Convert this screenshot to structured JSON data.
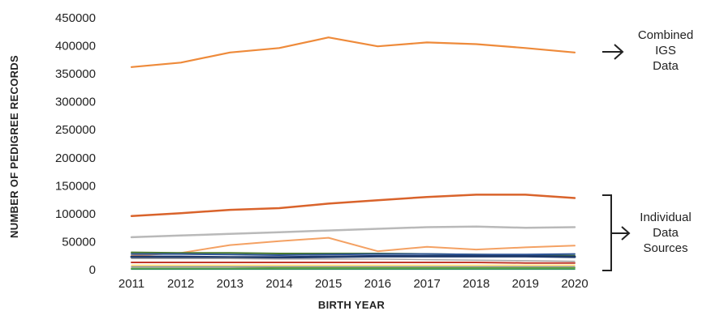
{
  "chart_data": {
    "type": "line",
    "title": "",
    "xlabel": "BIRTH YEAR",
    "ylabel": "NUMBER OF PEDIGREE RECORDS",
    "x": [
      2011,
      2012,
      2013,
      2014,
      2015,
      2016,
      2017,
      2018,
      2019,
      2020
    ],
    "yticks": [
      "0",
      "50000",
      "100000",
      "150000",
      "200000",
      "250000",
      "300000",
      "350000",
      "400000",
      "450000"
    ],
    "ylim": [
      0,
      450000
    ],
    "grid": false,
    "legend": "none",
    "series": [
      {
        "color": "#ee8a3a",
        "width": 2.2,
        "values": [
          362000,
          370000,
          388000,
          396000,
          415000,
          399000,
          406000,
          403000,
          396000,
          388000
        ]
      },
      {
        "color": "#d9632b",
        "width": 2.5,
        "values": [
          96000,
          101000,
          107000,
          110000,
          118000,
          124000,
          130000,
          134000,
          134000,
          128000
        ]
      },
      {
        "color": "#b9b9b9",
        "width": 2.5,
        "values": [
          58000,
          61000,
          64000,
          67000,
          70000,
          73000,
          76000,
          77000,
          75000,
          76000
        ]
      },
      {
        "color": "#f4a163",
        "width": 2,
        "values": [
          25000,
          30000,
          44000,
          51000,
          57000,
          33000,
          41000,
          36000,
          40000,
          43000
        ]
      },
      {
        "color": "#4a7a2c",
        "width": 2,
        "values": [
          31000,
          30000,
          30000,
          29000,
          29000,
          29000,
          28000,
          27000,
          26000,
          25000
        ]
      },
      {
        "color": "#2f5597",
        "width": 2,
        "values": [
          28000,
          28000,
          27000,
          26000,
          27000,
          28000,
          28000,
          27000,
          27000,
          28000
        ]
      },
      {
        "color": "#1f3a6b",
        "width": 3,
        "values": [
          23000,
          23000,
          22000,
          22000,
          23000,
          24000,
          24000,
          24000,
          24000,
          23000
        ]
      },
      {
        "color": "#a6a6a6",
        "width": 1.5,
        "values": [
          20000,
          20000,
          20000,
          19000,
          19000,
          19000,
          18000,
          17000,
          16000,
          15000
        ]
      },
      {
        "color": "#c0392b",
        "width": 2,
        "values": [
          13000,
          13000,
          13000,
          13000,
          13000,
          13000,
          13000,
          13000,
          12000,
          12000
        ]
      },
      {
        "color": "#ffd966",
        "width": 1.5,
        "values": [
          8000,
          8000,
          8000,
          8000,
          8000,
          8000,
          8000,
          8000,
          8000,
          8000
        ]
      },
      {
        "color": "#7f7f7f",
        "width": 1.5,
        "values": [
          5000,
          5000,
          5000,
          5000,
          5000,
          5000,
          5000,
          5000,
          5000,
          5000
        ]
      },
      {
        "color": "#70ad47",
        "width": 2,
        "values": [
          2000,
          2000,
          2000,
          3000,
          3000,
          3000,
          3000,
          3000,
          3000,
          3000
        ]
      },
      {
        "color": "#2e8b57",
        "width": 1.5,
        "values": [
          800,
          800,
          800,
          800,
          800,
          800,
          800,
          800,
          800,
          800
        ]
      }
    ],
    "annotations": [
      {
        "lines": [
          "Combined",
          "IGS",
          "Data"
        ],
        "marker": "arrow"
      },
      {
        "lines": [
          "Individual",
          "Data",
          "Sources"
        ],
        "marker": "bracket-arrow"
      }
    ]
  }
}
